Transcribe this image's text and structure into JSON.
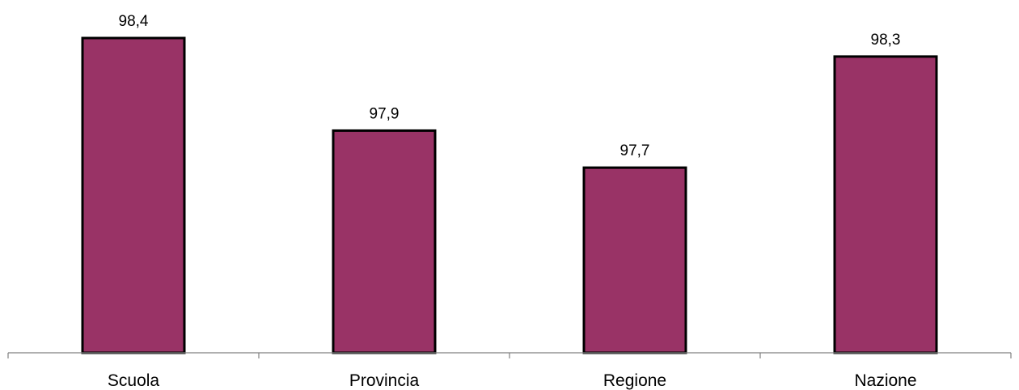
{
  "chart_data": {
    "type": "bar",
    "categories": [
      "Scuola",
      "Provincia",
      "Regione",
      "Nazione"
    ],
    "values": [
      98.4,
      97.9,
      97.7,
      98.3
    ],
    "value_labels": [
      "98,4",
      "97,9",
      "97,7",
      "98,3"
    ],
    "title": "",
    "xlabel": "",
    "ylabel": "",
    "ylim": [
      96.7,
      98.4
    ],
    "grid": false,
    "bar_color": "#993366",
    "bar_outline_color": "#000000",
    "axis_color": "#808080"
  }
}
